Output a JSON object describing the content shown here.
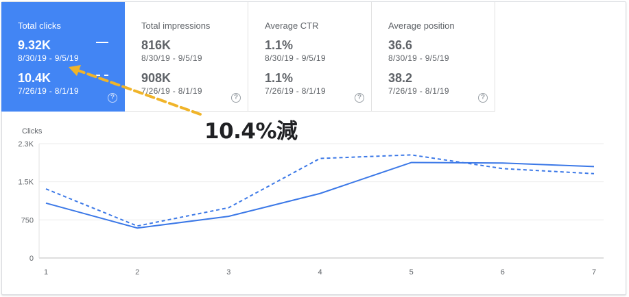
{
  "cards": [
    {
      "title": "Total clicks",
      "value1": "9.32K",
      "range1": "8/30/19 - 9/5/19",
      "value2": "10.4K",
      "range2": "7/26/19 - 8/1/19",
      "help": "?",
      "active": true
    },
    {
      "title": "Total impressions",
      "value1": "816K",
      "range1": "8/30/19 - 9/5/19",
      "value2": "908K",
      "range2": "7/26/19 - 8/1/19",
      "help": "?",
      "active": false
    },
    {
      "title": "Average CTR",
      "value1": "1.1%",
      "range1": "8/30/19 - 9/5/19",
      "value2": "1.1%",
      "range2": "7/26/19 - 8/1/19",
      "help": "?",
      "active": false
    },
    {
      "title": "Average position",
      "value1": "36.6",
      "range1": "8/30/19 - 9/5/19",
      "value2": "38.2",
      "range2": "7/26/19 - 8/1/19",
      "help": "?",
      "active": false
    }
  ],
  "annotation": {
    "text": "10.4%減",
    "arrow_color": "#f0b429"
  },
  "colors": {
    "accent": "#4285f4",
    "line": "#3b78e7",
    "grid": "#ebebeb"
  },
  "chart_data": {
    "type": "line",
    "title": "Clicks",
    "x": [
      1,
      2,
      3,
      4,
      5,
      6,
      7
    ],
    "series": [
      {
        "values": [
          1080,
          590,
          820,
          1270,
          1880,
          1870,
          1800
        ],
        "style": "solid"
      },
      {
        "values": [
          1360,
          630,
          990,
          1960,
          2030,
          1760,
          1660
        ],
        "style": "dashed"
      }
    ],
    "yticks": [
      0,
      750,
      1500,
      2250
    ],
    "ytick_labels": [
      "0",
      "750",
      "1.5K",
      "2.3K"
    ],
    "xtick_labels": [
      "1",
      "2",
      "3",
      "4",
      "5",
      "6",
      "7"
    ],
    "ylim": [
      0,
      2250
    ],
    "grid": true
  }
}
